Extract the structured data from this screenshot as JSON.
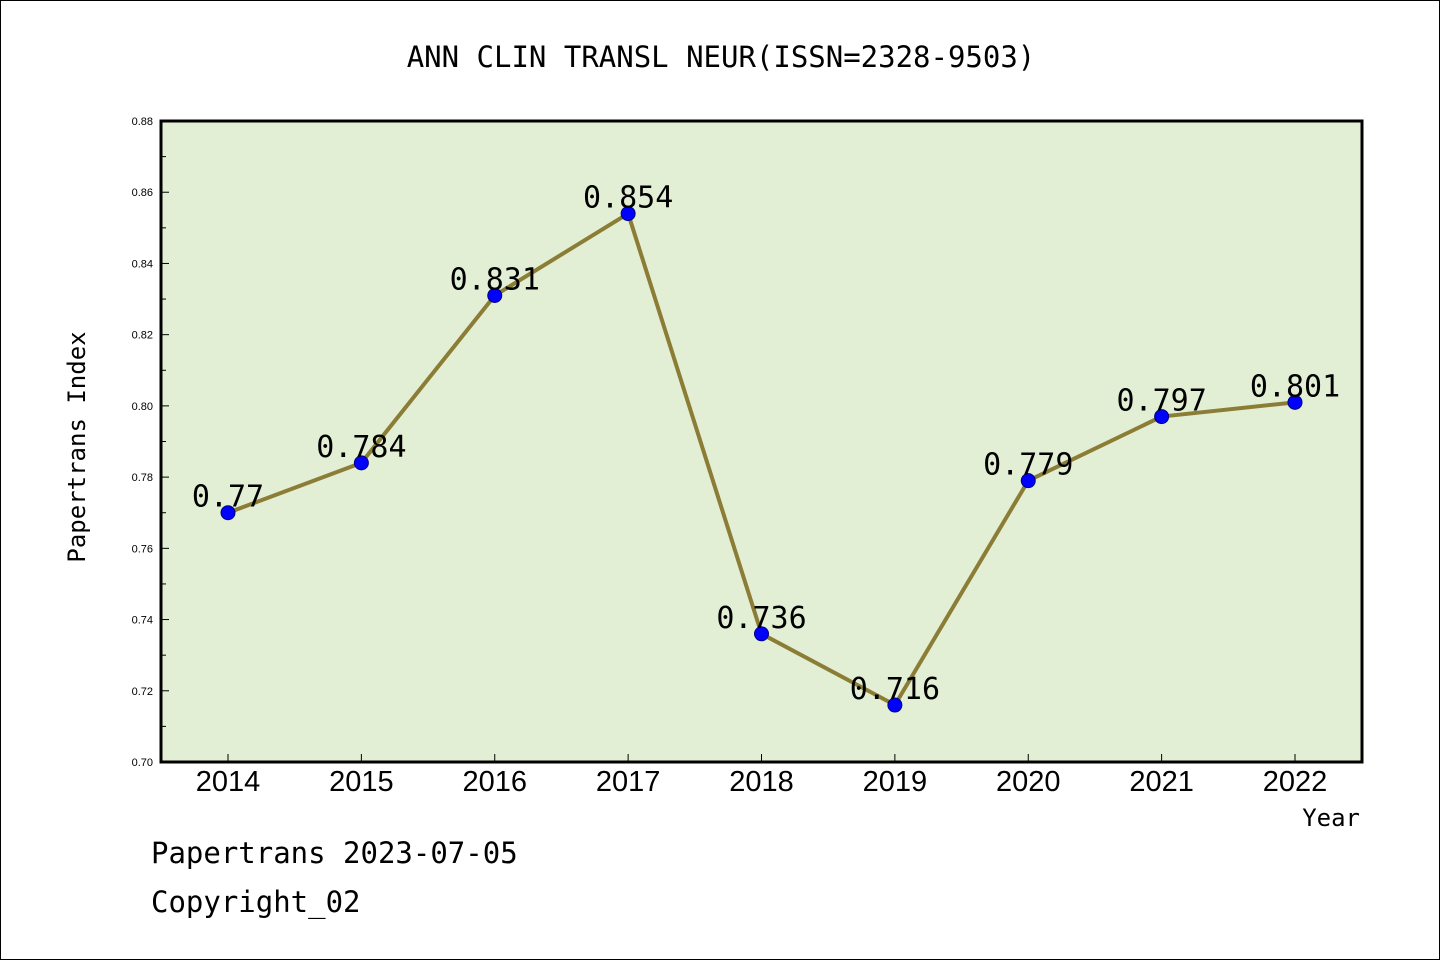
{
  "chart_data": {
    "type": "line",
    "title": "ANN CLIN TRANSL NEUR(ISSN=2328-9503)",
    "xlabel": "Year",
    "ylabel": "Papertrans Index",
    "categories": [
      "2014",
      "2015",
      "2016",
      "2017",
      "2018",
      "2019",
      "2020",
      "2021",
      "2022"
    ],
    "series": [
      {
        "values": [
          0.77,
          0.784,
          0.831,
          0.854,
          0.736,
          0.716,
          0.779,
          0.797,
          0.801
        ],
        "labels": [
          "0.77",
          "0.784",
          "0.831",
          "0.854",
          "0.736",
          "0.716",
          "0.779",
          "0.797",
          "0.801"
        ]
      }
    ],
    "ylim": [
      0.7,
      0.88
    ],
    "yticks": [
      "0.70",
      "0.72",
      "0.74",
      "0.76",
      "0.78",
      "0.80",
      "0.82",
      "0.84",
      "0.86",
      "0.88"
    ],
    "grid": false,
    "legend": "none",
    "colors": {
      "plot_background": "#e2efd5",
      "line": "#8b7d35",
      "marker_fill": "#0000ff",
      "marker_stroke": "#000080"
    }
  },
  "footer": {
    "line1": "Papertrans 2023-07-05",
    "line2": "Copyright_02"
  }
}
